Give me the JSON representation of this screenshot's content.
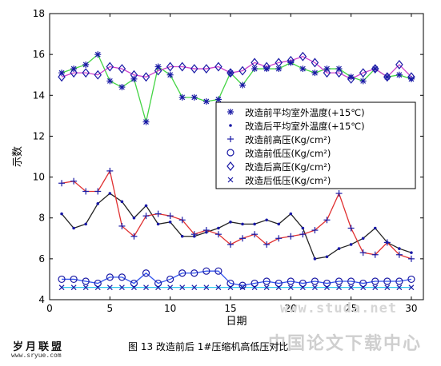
{
  "caption": "图 13 改造前后 1#压缩机高低压对比",
  "logo": {
    "text": "岁月联盟",
    "url": "www.sryue.com"
  },
  "watermark": {
    "url": "www.studa.net",
    "text": "中国论文下载中心"
  },
  "chart_data": {
    "type": "line",
    "xlabel": "日期",
    "ylabel": "示数",
    "xlim": [
      0,
      31
    ],
    "ylim": [
      4,
      18
    ],
    "xticks": [
      0,
      5,
      10,
      15,
      20,
      25,
      30
    ],
    "yticks": [
      4,
      6,
      8,
      10,
      12,
      14,
      16,
      18
    ],
    "x": [
      1,
      2,
      3,
      4,
      5,
      6,
      7,
      8,
      9,
      10,
      11,
      12,
      13,
      14,
      15,
      16,
      17,
      18,
      19,
      20,
      21,
      22,
      23,
      24,
      25,
      26,
      27,
      28,
      29,
      30
    ],
    "legend_position": "right",
    "series": [
      {
        "name": "改造前平均室外温度(+15℃)",
        "marker": "star",
        "color": "#1a1aa6",
        "line": "none",
        "values": [
          15.1,
          15.3,
          15.5,
          16.0,
          14.7,
          14.4,
          14.8,
          12.7,
          15.4,
          15.0,
          13.9,
          13.9,
          13.7,
          13.8,
          15.1,
          14.5,
          15.3,
          15.3,
          15.3,
          15.6,
          15.3,
          15.1,
          15.3,
          15.3,
          14.9,
          14.7,
          15.3,
          14.9,
          15.0,
          14.8
        ]
      },
      {
        "name": "改造后平均室外温度(+15℃)",
        "marker": "dot",
        "color": "#1a1aa6",
        "line": "none",
        "values": [
          8.2,
          7.5,
          7.7,
          8.7,
          9.2,
          8.8,
          8.0,
          8.6,
          7.7,
          7.8,
          7.1,
          7.1,
          7.3,
          7.5,
          7.8,
          7.7,
          7.7,
          7.9,
          7.7,
          8.2,
          7.5,
          6.0,
          6.1,
          6.5,
          6.7,
          7.0,
          7.5,
          6.8,
          6.5,
          6.3
        ]
      },
      {
        "name": "改造前高压(Kg/cm²)",
        "marker": "plus",
        "color": "#1a1aa6",
        "line": "none",
        "values": [
          9.7,
          9.8,
          9.3,
          9.3,
          10.3,
          7.6,
          7.1,
          8.1,
          8.2,
          8.1,
          7.9,
          7.2,
          7.4,
          7.2,
          6.7,
          7.0,
          7.2,
          6.7,
          7.0,
          7.1,
          7.2,
          7.4,
          7.9,
          9.2,
          7.5,
          6.3,
          6.2,
          6.8,
          6.2,
          6.0
        ]
      },
      {
        "name": "改造前低压(Kg/cm²)",
        "marker": "circle",
        "color": "#1a1aa6",
        "line": "none",
        "values": [
          5.0,
          5.0,
          4.9,
          4.8,
          5.1,
          5.1,
          4.8,
          5.3,
          4.8,
          5.0,
          5.3,
          5.3,
          5.4,
          5.4,
          4.8,
          4.7,
          4.8,
          4.9,
          4.8,
          4.9,
          4.8,
          4.9,
          4.8,
          4.9,
          4.9,
          4.8,
          4.9,
          4.9,
          4.9,
          5.0
        ]
      },
      {
        "name": "改造后高压(Kg/cm²)",
        "marker": "diamond",
        "color": "#1a1aa6",
        "line": "none",
        "values": [
          14.9,
          15.1,
          15.1,
          15.0,
          15.4,
          15.3,
          15.0,
          14.9,
          15.2,
          15.4,
          15.4,
          15.3,
          15.3,
          15.4,
          15.1,
          15.2,
          15.6,
          15.4,
          15.6,
          15.7,
          15.9,
          15.6,
          15.1,
          15.1,
          14.8,
          15.1,
          15.3,
          14.9,
          15.5,
          14.9
        ]
      },
      {
        "name": "改造后低压(Kg/cm²)",
        "marker": "x",
        "color": "#1a1aa6",
        "line": "none",
        "values": [
          4.6,
          4.6,
          4.6,
          4.6,
          4.6,
          4.6,
          4.6,
          4.6,
          4.6,
          4.6,
          4.6,
          4.6,
          4.6,
          4.6,
          4.6,
          4.6,
          4.6,
          4.6,
          4.6,
          4.6,
          4.6,
          4.6,
          4.6,
          4.6,
          4.6,
          4.6,
          4.6,
          4.6,
          4.6,
          4.6
        ]
      }
    ],
    "trend_lines": [
      {
        "follows": "改造前平均室外温度(+15℃)",
        "color": "#44d444"
      },
      {
        "follows": "改造后平均室外温度(+15℃)",
        "color": "#222222"
      },
      {
        "follows": "改造前高压(Kg/cm²)",
        "color": "#e03030"
      },
      {
        "follows": "改造前低压(Kg/cm²)",
        "color": "#3355ee"
      },
      {
        "follows": "改造后高压(Kg/cm²)",
        "color": "#cc44cc"
      },
      {
        "follows": "改造后低压(Kg/cm²)",
        "color": "#33c8ee"
      }
    ]
  }
}
